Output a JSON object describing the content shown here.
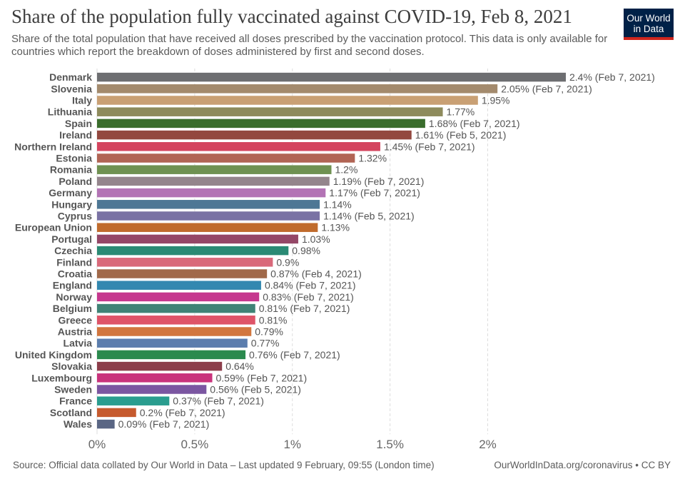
{
  "chart_data": {
    "type": "bar",
    "orientation": "horizontal",
    "title": "Share of the population fully vaccinated against COVID-19, Feb 8, 2021",
    "subtitle": "Share of the total population that have received all doses prescribed by the vaccination protocol. This data is only available for countries which report the breakdown of doses administered by first and second doses.",
    "xlim": [
      0,
      2.4
    ],
    "xticks": [
      0,
      0.5,
      1,
      1.5,
      2
    ],
    "xtick_labels": [
      "0%",
      "0.5%",
      "1%",
      "1.5%",
      "2%"
    ],
    "grid": "vertical dashed",
    "unit": "%",
    "bars": [
      {
        "name": "Denmark",
        "value": 2.4,
        "label": "2.4% (Feb 7, 2021)",
        "color": "#6d6e71"
      },
      {
        "name": "Slovenia",
        "value": 2.05,
        "label": "2.05% (Feb 7, 2021)",
        "color": "#a38a6d"
      },
      {
        "name": "Italy",
        "value": 1.95,
        "label": "1.95%",
        "color": "#c9a074"
      },
      {
        "name": "Lithuania",
        "value": 1.77,
        "label": "1.77%",
        "color": "#8e8b5c"
      },
      {
        "name": "Spain",
        "value": 1.68,
        "label": "1.68% (Feb 7, 2021)",
        "color": "#3a6d2c"
      },
      {
        "name": "Ireland",
        "value": 1.61,
        "label": "1.61% (Feb 5, 2021)",
        "color": "#93483f"
      },
      {
        "name": "Northern Ireland",
        "value": 1.45,
        "label": "1.45% (Feb 7, 2021)",
        "color": "#d4445e"
      },
      {
        "name": "Estonia",
        "value": 1.32,
        "label": "1.32%",
        "color": "#b16454"
      },
      {
        "name": "Romania",
        "value": 1.2,
        "label": "1.2%",
        "color": "#6f9151"
      },
      {
        "name": "Poland",
        "value": 1.19,
        "label": "1.19% (Feb 7, 2021)",
        "color": "#94858c"
      },
      {
        "name": "Germany",
        "value": 1.17,
        "label": "1.17% (Feb 7, 2021)",
        "color": "#b373b5"
      },
      {
        "name": "Hungary",
        "value": 1.14,
        "label": "1.14%",
        "color": "#4e7795"
      },
      {
        "name": "Cyprus",
        "value": 1.14,
        "label": "1.14% (Feb 5, 2021)",
        "color": "#7a72a4"
      },
      {
        "name": "European Union",
        "value": 1.13,
        "label": "1.13%",
        "color": "#c06b2d"
      },
      {
        "name": "Portugal",
        "value": 1.03,
        "label": "1.03%",
        "color": "#944767"
      },
      {
        "name": "Czechia",
        "value": 0.98,
        "label": "0.98%",
        "color": "#2a8a74"
      },
      {
        "name": "Finland",
        "value": 0.9,
        "label": "0.9%",
        "color": "#d9697a"
      },
      {
        "name": "Croatia",
        "value": 0.87,
        "label": "0.87% (Feb 4, 2021)",
        "color": "#a1694a"
      },
      {
        "name": "England",
        "value": 0.84,
        "label": "0.84% (Feb 7, 2021)",
        "color": "#3388b0"
      },
      {
        "name": "Norway",
        "value": 0.83,
        "label": "0.83% (Feb 7, 2021)",
        "color": "#c6388e"
      },
      {
        "name": "Belgium",
        "value": 0.81,
        "label": "0.81% (Feb 7, 2021)",
        "color": "#3f8376"
      },
      {
        "name": "Greece",
        "value": 0.81,
        "label": "0.81%",
        "color": "#de5468"
      },
      {
        "name": "Austria",
        "value": 0.79,
        "label": "0.79%",
        "color": "#d2763e"
      },
      {
        "name": "Latvia",
        "value": 0.77,
        "label": "0.77%",
        "color": "#5b7dad"
      },
      {
        "name": "United Kingdom",
        "value": 0.76,
        "label": "0.76% (Feb 7, 2021)",
        "color": "#2b8a4e"
      },
      {
        "name": "Slovakia",
        "value": 0.64,
        "label": "0.64%",
        "color": "#8c3d4a"
      },
      {
        "name": "Luxembourg",
        "value": 0.59,
        "label": "0.59% (Feb 7, 2021)",
        "color": "#c9337c"
      },
      {
        "name": "Sweden",
        "value": 0.56,
        "label": "0.56% (Feb 5, 2021)",
        "color": "#7b56a1"
      },
      {
        "name": "France",
        "value": 0.37,
        "label": "0.37% (Feb 7, 2021)",
        "color": "#2a9d8f"
      },
      {
        "name": "Scotland",
        "value": 0.2,
        "label": "0.2% (Feb 7, 2021)",
        "color": "#c65a2e"
      },
      {
        "name": "Wales",
        "value": 0.09,
        "label": "0.09% (Feb 7, 2021)",
        "color": "#5a6684"
      }
    ]
  },
  "logo": {
    "line1": "Our World",
    "line2": "in Data"
  },
  "footer": {
    "source": "Source: Official data collated by Our World in Data – Last updated 9 February, 09:55 (London time)",
    "license": "OurWorldInData.org/coronavirus • CC BY"
  }
}
